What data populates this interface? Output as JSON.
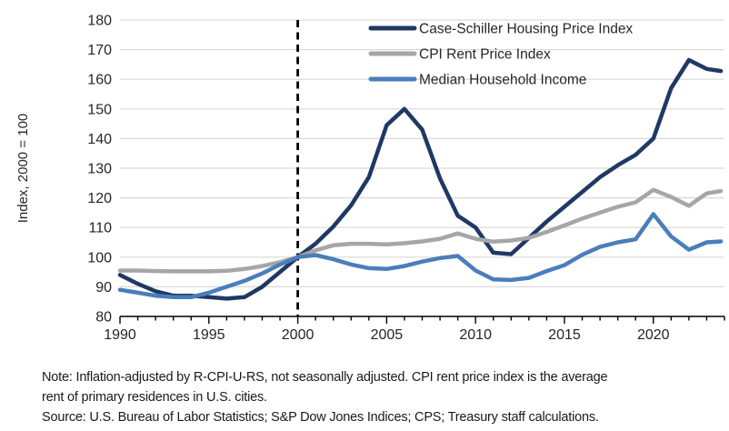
{
  "chart_data": {
    "type": "line",
    "title": "",
    "ylabel": "Index, 2000 = 100",
    "ylim": [
      80,
      180
    ],
    "ytick_step": 10,
    "xlim": [
      1990,
      2024
    ],
    "xticks_labeled": [
      1990,
      1995,
      2000,
      2005,
      2010,
      2015,
      2020
    ],
    "grid": "horizontal gridlines only",
    "reference_line_x": 2000,
    "reference_line_style": "black dashed vertical",
    "legend_position": "top-right-inside",
    "x": [
      1990,
      1991,
      1992,
      1993,
      1994,
      1995,
      1996,
      1997,
      1998,
      1999,
      2000,
      2001,
      2002,
      2003,
      2004,
      2005,
      2006,
      2007,
      2008,
      2009,
      2010,
      2011,
      2012,
      2013,
      2014,
      2015,
      2016,
      2017,
      2018,
      2019,
      2020,
      2021,
      2022,
      2023,
      2023.8
    ],
    "series": [
      {
        "name": "Case-Schiller Housing Price Index",
        "color": "#1f3864",
        "values": [
          94,
          91,
          88.5,
          87,
          87,
          86.5,
          86,
          86.5,
          90,
          95,
          100,
          104.5,
          110.3,
          117.5,
          127,
          144.5,
          150,
          143,
          126.5,
          114,
          110,
          101.5,
          101,
          106.5,
          112,
          117,
          122,
          127,
          131,
          134.5,
          140,
          157,
          166.5,
          163.5,
          162.8
        ]
      },
      {
        "name": "CPI Rent Price Index",
        "color": "#a6a6a6",
        "values": [
          95.5,
          95.5,
          95.3,
          95.2,
          95.2,
          95.2,
          95.4,
          96,
          97,
          98.3,
          100,
          102.3,
          104,
          104.5,
          104.5,
          104.3,
          104.7,
          105.3,
          106.2,
          108,
          106.2,
          105.2,
          105.6,
          106.5,
          108.5,
          110.7,
          113,
          115,
          117,
          118.5,
          122.7,
          120.3,
          117.3,
          121.5,
          122.3
        ]
      },
      {
        "name": "Median Household Income",
        "color": "#4a7ebb",
        "values": [
          89,
          88,
          87,
          86.5,
          86.5,
          88,
          90,
          92,
          94.5,
          97.5,
          100,
          100.7,
          99.3,
          97.5,
          96.3,
          96,
          97,
          98.5,
          99.7,
          100.4,
          95.5,
          92.5,
          92.3,
          93,
          95.3,
          97.3,
          100.8,
          103.5,
          105,
          106,
          114.5,
          107,
          102.5,
          105,
          105.3
        ]
      }
    ]
  },
  "notes": {
    "note_line1": "Note: Inflation-adjusted by R-CPI-U-RS, not seasonally adjusted. CPI rent price index is the average",
    "note_line2": "rent of primary residences in U.S. cities.",
    "source_line": "Source: U.S. Bureau of Labor Statistics; S&P Dow Jones Indices; CPS; Treasury staff calculations."
  },
  "colors": {
    "grid": "#d9d9d9",
    "axis": "#000000",
    "tick_text": "#262626",
    "background": "#ffffff"
  }
}
